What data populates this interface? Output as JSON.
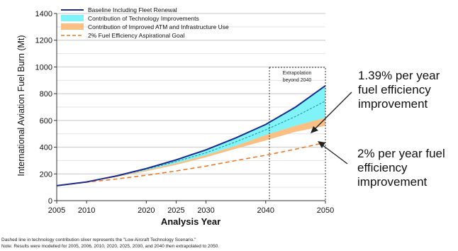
{
  "chart_data": {
    "type": "line",
    "title": "",
    "xlabel": "Analysis Year",
    "ylabel": "International Aviation Fuel Burn (Mt)",
    "xlim": [
      2005,
      2050
    ],
    "ylim": [
      0,
      1400
    ],
    "x_ticks": [
      2005,
      2010,
      2020,
      2025,
      2030,
      2040,
      2050
    ],
    "y_ticks": [
      0,
      200,
      400,
      600,
      800,
      1000,
      1200,
      1400
    ],
    "grid": true,
    "legend_position": "top-left",
    "legend": [
      "Baseline Including Fleet Renewal",
      "Contribution of Technology Improvements",
      "Contribution of Improved ATM and Infrastructure Use",
      "2% Fuel Efficiency Aspirational Goal"
    ],
    "series": [
      {
        "name": "Baseline Including Fleet Renewal",
        "color": "#1f2a8c",
        "x": [
          2005,
          2010,
          2015,
          2020,
          2025,
          2030,
          2035,
          2040,
          2045,
          2050
        ],
        "values": [
          112,
          140,
          185,
          240,
          305,
          380,
          470,
          570,
          700,
          860
        ]
      },
      {
        "name": "Contribution of Technology Improvements",
        "color": "#7ff3f7",
        "x": [
          2005,
          2010,
          2015,
          2020,
          2025,
          2030,
          2035,
          2040,
          2045,
          2050
        ],
        "values": [
          112,
          140,
          180,
          228,
          280,
          340,
          410,
          490,
          560,
          620
        ]
      },
      {
        "name": "Contribution of Improved ATM and Infrastructure Use",
        "color": "#f9bf83",
        "x": [
          2005,
          2010,
          2015,
          2020,
          2025,
          2030,
          2035,
          2040,
          2045,
          2050
        ],
        "values": [
          112,
          139,
          176,
          220,
          268,
          325,
          388,
          450,
          515,
          560
        ]
      },
      {
        "name": "2% Fuel Efficiency Aspirational Goal",
        "color": "#f07b24",
        "x": [
          2005,
          2010,
          2015,
          2020,
          2025,
          2030,
          2035,
          2040,
          2045,
          2050
        ],
        "values": [
          112,
          138,
          162,
          190,
          222,
          258,
          300,
          340,
          385,
          435
        ]
      }
    ],
    "technology_scenario_dashed": {
      "x": [
        2005,
        2010,
        2015,
        2020,
        2025,
        2030,
        2035,
        2040,
        2045,
        2050
      ],
      "values": [
        112,
        140,
        182,
        235,
        292,
        358,
        440,
        530,
        630,
        745
      ]
    },
    "annotations": {
      "extrapolation_label": [
        "Extrapolation",
        "beyond 2040"
      ],
      "extrapolation_range": [
        2040,
        2050
      ],
      "callout_1": "1.39% per year\nfuel efficiency\nimprovement",
      "callout_2": "2% per year fuel\nefficiency\nimprovement"
    },
    "footnotes": [
      "Dashed line in technology contribution sliver represents the \"Low Aircraft Technology Scenario.\"",
      "Note: Results were modelled for 2005, 2006, 2010, 2020, 2025, 2030, and 2040 then extrapolated to 2050."
    ]
  }
}
